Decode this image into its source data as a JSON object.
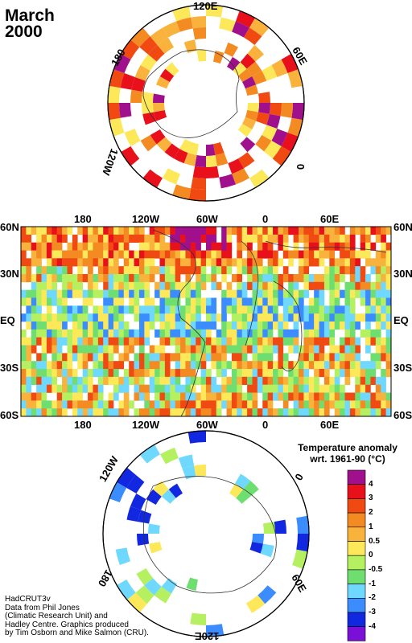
{
  "title": {
    "line1": "March",
    "line2": "2000"
  },
  "top_polar": {
    "labels": {
      "lon_120E": "120E",
      "lon_60E": "60E",
      "lon_0": "0",
      "lon_120W": "120W",
      "lon_180": "180"
    }
  },
  "main_map": {
    "top_axis": [
      "180",
      "120W",
      "60W",
      "0",
      "60E"
    ],
    "bottom_axis": [
      "180",
      "120W",
      "60W",
      "0",
      "60E"
    ],
    "left_axis": [
      "60N",
      "30N",
      "EQ",
      "30S",
      "60S"
    ],
    "right_axis": [
      "60N",
      "30N",
      "EQ",
      "30S",
      "60S"
    ]
  },
  "bottom_polar": {
    "labels": {
      "lon_120W": "120W",
      "lon_0": "0",
      "lon_60E": "60E",
      "lon_120E": "120E",
      "lon_180": "180"
    }
  },
  "legend": {
    "title_line1": "Temperature anomaly",
    "title_line2": "wrt. 1961-90  (°C)",
    "ticks": [
      "4",
      "3",
      "2",
      "1",
      "0.5",
      "0",
      "-0.5",
      "-1",
      "-2",
      "-3",
      "-4"
    ],
    "colors": [
      "#a0108c",
      "#e8101a",
      "#f04a12",
      "#f48a22",
      "#f9b23b",
      "#fde85a",
      "#b4f060",
      "#6fde70",
      "#6fd8ff",
      "#3a8cff",
      "#1228e0",
      "#7a10d8"
    ]
  },
  "credits": [
    "HadCRUT3v",
    "Data from Phil Jones",
    "(Climatic Research Unit) and",
    "Hadley Centre.  Graphics produced",
    "by Tim Osborn and Mike Salmon (CRU)."
  ]
}
